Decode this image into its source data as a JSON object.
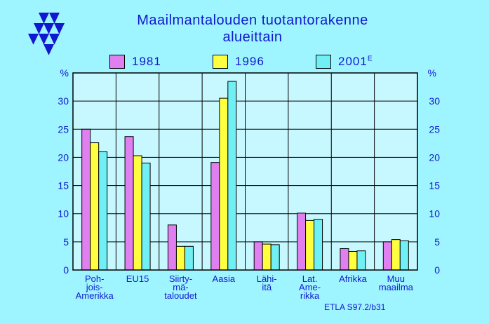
{
  "title_line1": "Maailmantalouden  tuotantorakenne",
  "title_line2": "alueittain",
  "source_note": "ETLA S97.2/b31",
  "colors": {
    "background": "#9ff5ff",
    "plot_background": "#c8f8ff",
    "text": "#1018d0",
    "series_1981": "#e080f0",
    "series_1996": "#ffff40",
    "series_2001": "#70f0f4"
  },
  "chart_data": {
    "type": "bar",
    "title": "Maailmantalouden  tuotantorakenne alueittain",
    "ylabel": "%",
    "ylabel_right": "%",
    "ylim": [
      0,
      35
    ],
    "yticks": [
      0,
      5,
      10,
      15,
      20,
      25,
      30
    ],
    "grid": true,
    "legend_position": "top",
    "categories": [
      "Poh-\njois-\nAmerikka",
      "EU15",
      "Siirty-\nmä-\ntaloudet",
      "Aasia",
      "Lähi-\nitä",
      "Lat.\nAme-\nrikka",
      "Afrikka",
      "Muu\nmaailma"
    ],
    "series": [
      {
        "name": "1981",
        "color": "#e080f0",
        "values": [
          25.0,
          23.7,
          8.0,
          19.1,
          5.0,
          10.1,
          3.8,
          5.0
        ]
      },
      {
        "name": "1996",
        "color": "#ffff40",
        "values": [
          22.6,
          20.3,
          4.2,
          30.5,
          4.6,
          8.8,
          3.3,
          5.4
        ]
      },
      {
        "name": "2001",
        "superscript": "E",
        "color": "#70f0f4",
        "values": [
          21.0,
          19.0,
          4.2,
          33.5,
          4.5,
          9.0,
          3.4,
          5.2
        ]
      }
    ]
  }
}
